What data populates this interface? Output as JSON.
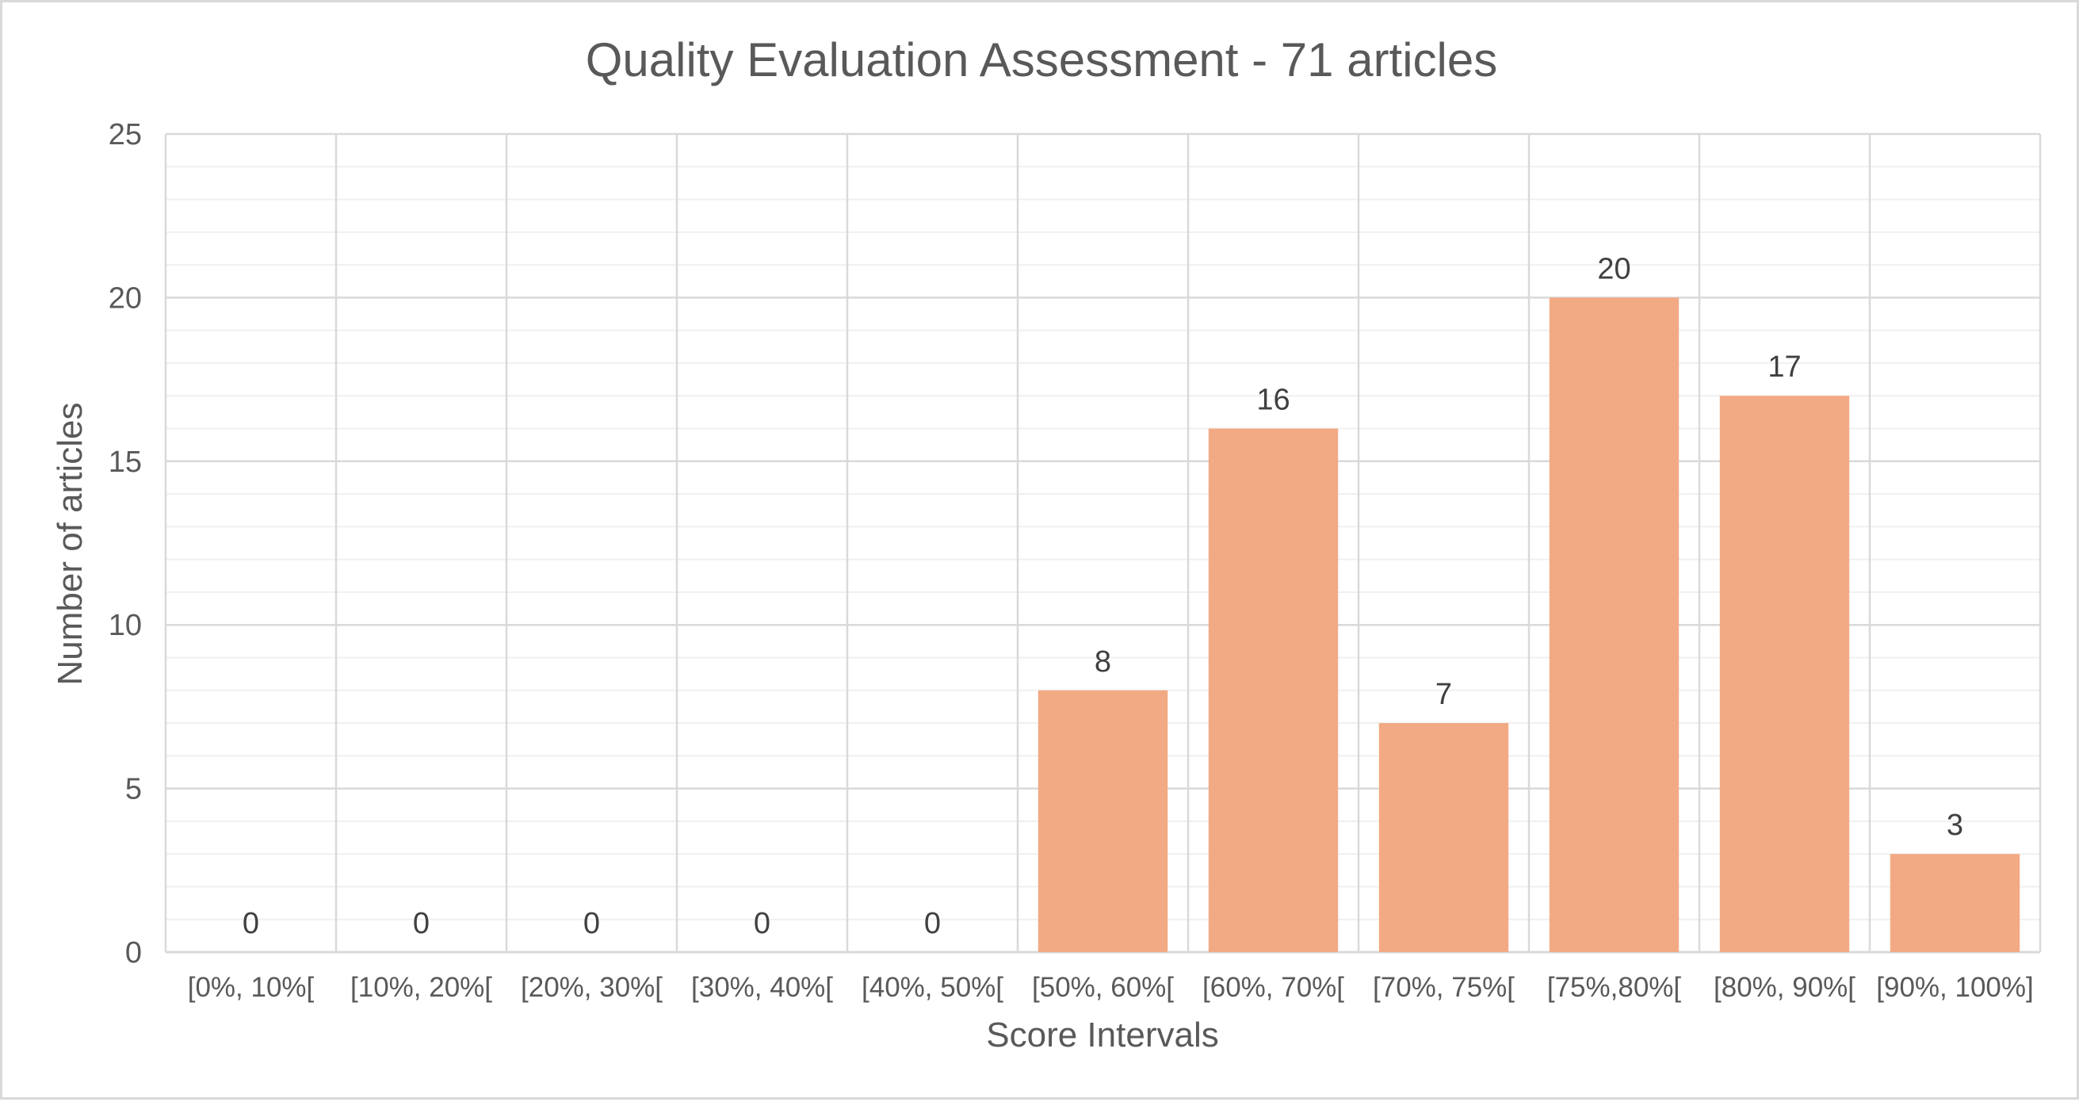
{
  "chart_data": {
    "type": "bar",
    "title": "Quality Evaluation Assessment - 71 articles",
    "xlabel": "Score Intervals",
    "ylabel": "Number of articles",
    "categories": [
      "[0%, 10%[",
      "[10%, 20%[",
      "[20%, 30%[",
      "[30%, 40%[",
      "[40%, 50%[",
      "[50%, 60%[",
      "[60%, 70%[",
      "[70%, 75%[",
      "[75%,80%[",
      "[80%, 90%[",
      "[90%, 100%]"
    ],
    "values": [
      0,
      0,
      0,
      0,
      0,
      8,
      16,
      7,
      20,
      17,
      3
    ],
    "ylim": [
      0,
      25
    ],
    "yticks": [
      0,
      5,
      10,
      15,
      20,
      25
    ],
    "grid": true,
    "legend": "none",
    "bar_color": "#f2aa84"
  }
}
